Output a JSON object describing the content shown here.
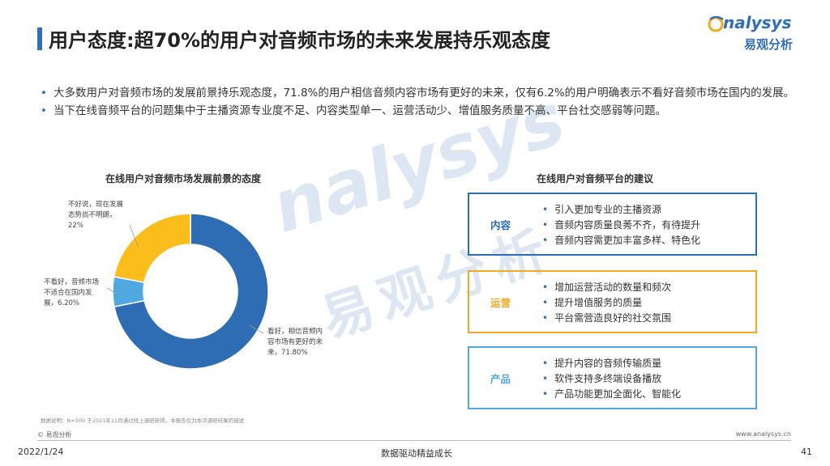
{
  "header": {
    "title": "用户态度:超70%的用户对音频市场的未来发展持乐观态度",
    "logo_brand": "nalysys",
    "logo_cn": "易观分析"
  },
  "bullets": [
    "大多数用户对音频市场的发展前景持乐观态度，71.8%的用户相信音频内容市场有更好的未来，仅有6.2%的用户明确表示不看好音频市场在国内的发展。",
    "当下在线音频平台的问题集中于主播资源专业度不足、内容类型单一、运营活动少、增值服务质量不高、平台社交感弱等问题。"
  ],
  "chart_data": {
    "type": "pie",
    "title": "在线用户对音频市场发展前景的态度",
    "categories": [
      "看好，相信音频内容市场有更好的未来",
      "不看好，音频市场不适合在国内发展",
      "不好说，现在发展态势尚不明朗"
    ],
    "values": [
      71.8,
      6.2,
      22
    ],
    "value_labels": [
      "71.80%",
      "6.20%",
      "22%"
    ],
    "colors": [
      "#2e6db4",
      "#4fa8e0",
      "#fbbd1b"
    ],
    "donut": true
  },
  "slice_labels": {
    "positive": [
      "看好，相信音频内",
      "容市场有更好的未",
      "来，71.80%"
    ],
    "negative": [
      "不看好，音频市场",
      "不适合在国内发",
      "展，6.20%"
    ],
    "uncertain": [
      "不好说，现在发展",
      "态势尚不明朗，",
      "22%"
    ]
  },
  "advice": {
    "title": "在线用户对音频平台的建议",
    "groups": [
      {
        "label": "内容",
        "color": "#2e6db4",
        "items": [
          "引入更加专业的主播资源",
          "音频内容质量良莠不齐，有待提升",
          "音频内容需更加丰富多样、特色化"
        ]
      },
      {
        "label": "运营",
        "color": "#f5a623",
        "items": [
          "增加运营活动的数量和频次",
          "提升增值服务的质量",
          "平台需营造良好的社交氛围"
        ]
      },
      {
        "label": "产品",
        "color": "#4fa8e0",
        "items": [
          "提升内容的音频传输质量",
          "软件支持多终端设备播放",
          "产品功能更加全面化、智能化"
        ]
      }
    ]
  },
  "footer": {
    "note": "数据说明：N=500 于2021年11月通过线上调研获得。本报告仅为本次调研结果的描述",
    "copyright": "© 易观分析",
    "url": "www.analysys.cn",
    "date": "2022/1/24",
    "slogan": "数据驱动精益成长",
    "page": "41"
  },
  "watermark": {
    "brand": "nalysys",
    "cn": "易观分析"
  }
}
